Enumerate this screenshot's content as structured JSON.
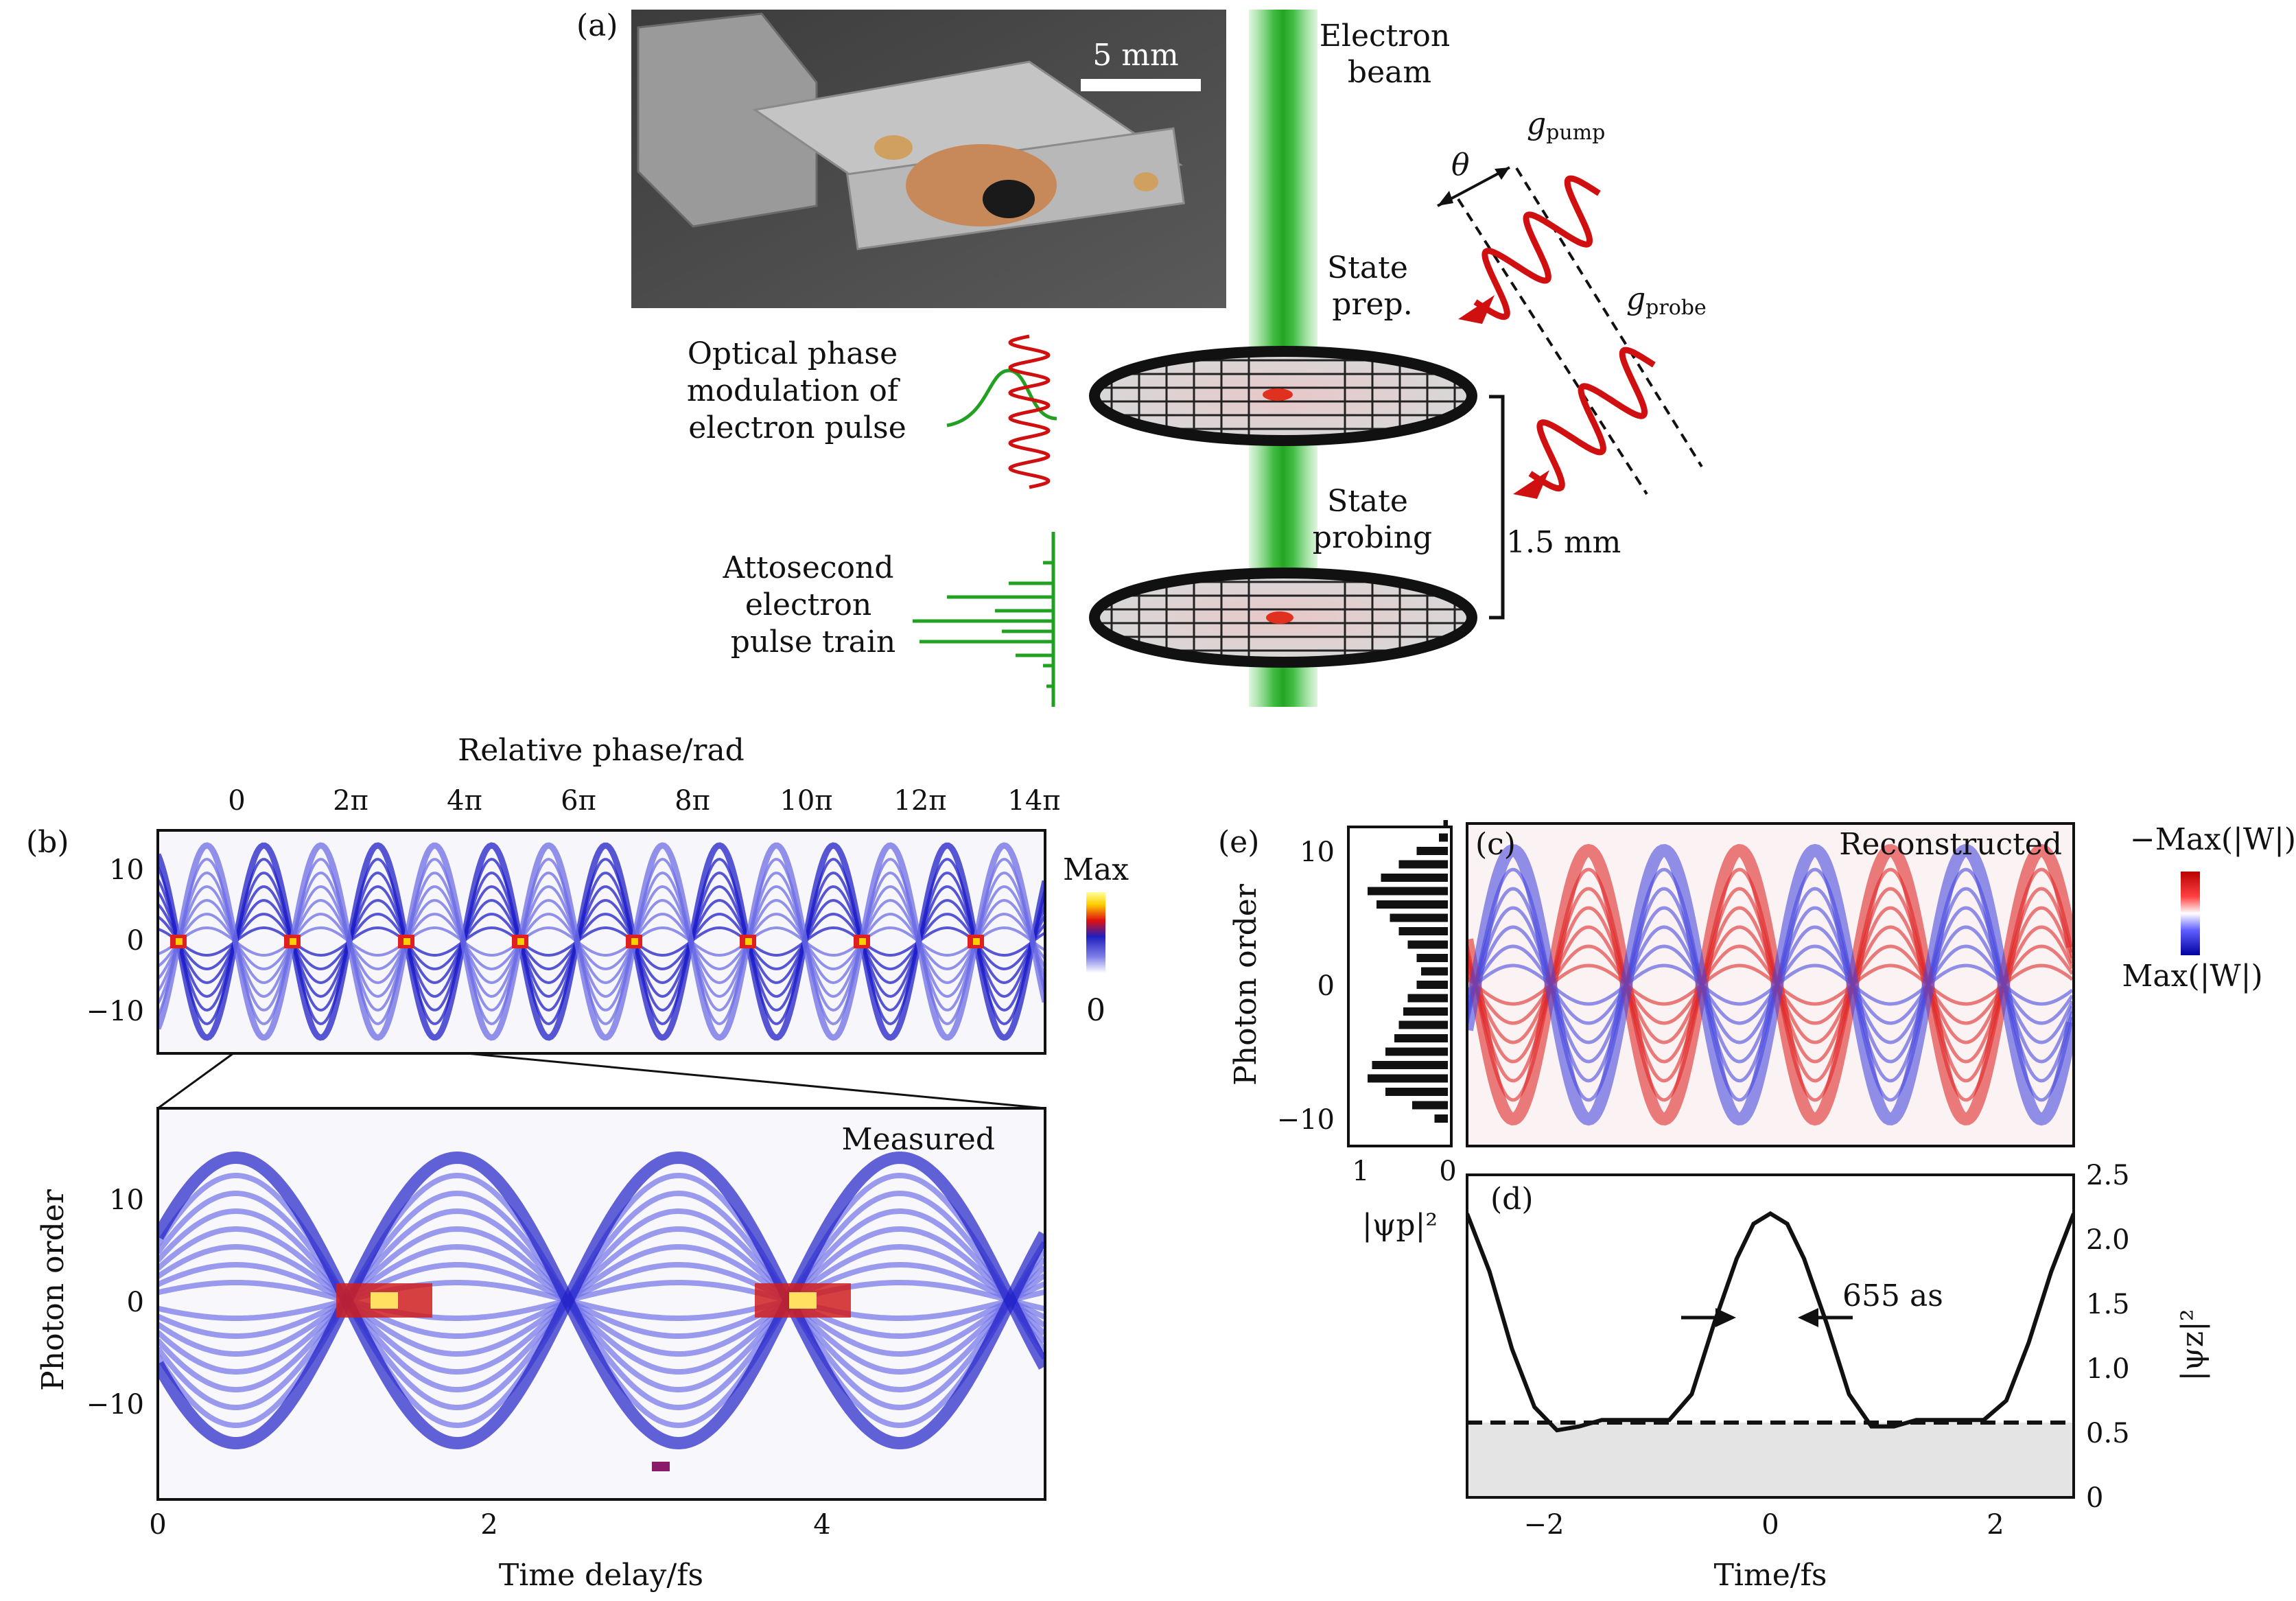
{
  "panel_a": {
    "tag": "(a)",
    "scale_bar": "5 mm",
    "electron_beam": [
      "Electron",
      "beam"
    ],
    "state_prep": [
      "State",
      "prep."
    ],
    "state_probing": [
      "State",
      "probing"
    ],
    "optical_modulation": [
      "Optical phase",
      "modulation of",
      "electron pulse"
    ],
    "attosecond_train": [
      "Attosecond",
      "electron",
      "pulse train"
    ],
    "theta": "θ",
    "g_pump_main": "g",
    "g_pump_sub": "pump",
    "g_probe_main": "g",
    "g_probe_sub": "probe",
    "distance": "1.5 mm"
  },
  "panel_b": {
    "tag": "(b)",
    "top_axis_title": "Relative phase/rad",
    "phase_ticks": [
      "0",
      "2π",
      "4π",
      "6π",
      "8π",
      "10π",
      "12π",
      "14π"
    ],
    "y_ticks": [
      "10",
      "0",
      "−10"
    ],
    "colorbar_max": "Max",
    "colorbar_min": "0",
    "zoom_title": "Measured",
    "zoom_y_label": "Photon order",
    "zoom_y_ticks": [
      "10",
      "0",
      "−10"
    ],
    "zoom_x_ticks": [
      "0",
      "2",
      "4"
    ],
    "x_label": "Time delay/fs"
  },
  "panel_c": {
    "tag": "(c)",
    "title": "Reconstructed",
    "colorbar_top": "−Max(|W|)",
    "colorbar_bottom": "Max(|W|)"
  },
  "panel_e": {
    "tag": "(e)",
    "y_label": "Photon order",
    "y_ticks": [
      "10",
      "0",
      "−10"
    ],
    "x_ticks": [
      "1",
      "0"
    ],
    "x_label": "|ψp|²"
  },
  "panel_d": {
    "tag": "(d)",
    "annotation": "655 as",
    "x_ticks": [
      "−2",
      "0",
      "2"
    ],
    "x_label": "Time/fs",
    "y_ticks": [
      "2.5",
      "2.0",
      "1.5",
      "1.0",
      "0.5",
      "0"
    ],
    "y_label": "|ψz|²"
  },
  "chart_data": [
    {
      "type": "bar",
      "panel": "e",
      "x": [
        12,
        11,
        10,
        9,
        8,
        7,
        6,
        5,
        4,
        3,
        2,
        1,
        0,
        -1,
        -2,
        -3,
        -4,
        -5,
        -6,
        -7,
        -8,
        -9,
        -10
      ],
      "values": [
        0.05,
        0.1,
        0.35,
        0.55,
        0.75,
        0.9,
        0.8,
        0.65,
        0.55,
        0.45,
        0.35,
        0.3,
        0.35,
        0.45,
        0.5,
        0.55,
        0.6,
        0.7,
        0.85,
        0.9,
        0.7,
        0.4,
        0.15
      ],
      "ylabel": "Photon order",
      "xlabel": "|ψp|²"
    },
    {
      "type": "line",
      "panel": "d",
      "x": [
        -2.7,
        -2.5,
        -2.3,
        -2.1,
        -1.9,
        -1.7,
        -1.5,
        -1.3,
        -1.1,
        -0.9,
        -0.7,
        -0.5,
        -0.3,
        -0.15,
        0,
        0.15,
        0.3,
        0.5,
        0.7,
        0.9,
        1.1,
        1.3,
        1.5,
        1.7,
        1.9,
        2.1,
        2.3,
        2.5,
        2.7
      ],
      "values": [
        2.2,
        1.75,
        1.15,
        0.7,
        0.52,
        0.55,
        0.6,
        0.6,
        0.6,
        0.6,
        0.8,
        1.35,
        1.85,
        2.12,
        2.2,
        2.12,
        1.85,
        1.35,
        0.8,
        0.55,
        0.55,
        0.6,
        0.6,
        0.6,
        0.6,
        0.75,
        1.2,
        1.75,
        2.2
      ],
      "threshold": 0.58,
      "xlabel": "Time/fs",
      "ylabel": "|ψz|²",
      "xlim": [
        -2.7,
        2.7
      ],
      "ylim": [
        0,
        2.5
      ]
    }
  ]
}
